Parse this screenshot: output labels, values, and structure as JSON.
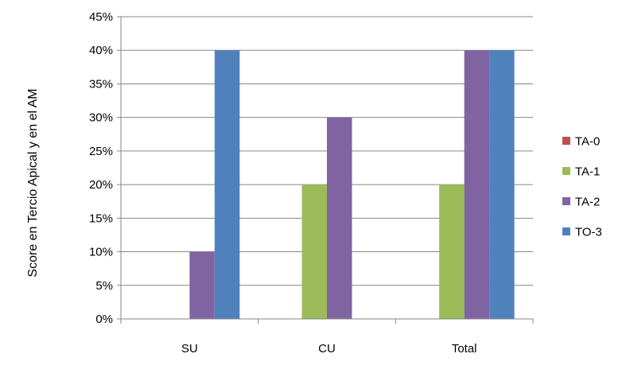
{
  "chart_data": {
    "type": "bar",
    "categories": [
      "SU",
      "CU",
      "Total"
    ],
    "series": [
      {
        "name": "TA-0",
        "color": "#C0504D",
        "values": [
          0,
          0,
          0
        ]
      },
      {
        "name": "TA-1",
        "color": "#9BBB59",
        "values": [
          0,
          20,
          20
        ]
      },
      {
        "name": "TA-2",
        "color": "#8064A2",
        "values": [
          10,
          30,
          40
        ]
      },
      {
        "name": "TO-3",
        "color": "#4F81BD",
        "values": [
          40,
          0,
          40
        ]
      }
    ],
    "ylabel": "Score en Tercio Apical y en el AM",
    "xlabel": "",
    "ylim": [
      0,
      45
    ],
    "yticks": [
      "0%",
      "5%",
      "10%",
      "15%",
      "20%",
      "25%",
      "30%",
      "35%",
      "40%",
      "45%"
    ],
    "grid": true,
    "legend_position": "right"
  }
}
